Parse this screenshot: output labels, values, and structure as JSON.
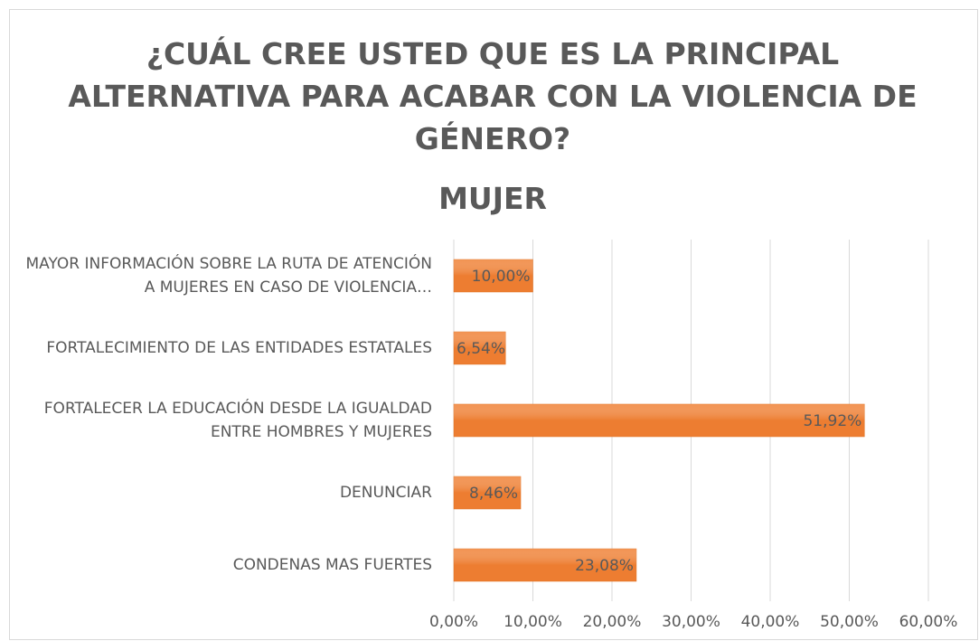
{
  "chart_data": {
    "type": "barh",
    "title": "¿CUÁL CREE USTED QUE ES LA PRINCIPAL ALTERNATIVA PARA ACABAR CON LA VIOLENCIA DE GÉNERO?",
    "subtitle": "MUJER",
    "categories": [
      "MAYOR INFORMACIÓN SOBRE LA RUTA DE ATENCIÓN A MUJERES EN CASO DE VIOLENCIA…",
      "FORTALECIMIENTO DE LAS ENTIDADES ESTATALES",
      "FORTALECER LA EDUCACIÓN DESDE LA IGUALDAD ENTRE HOMBRES Y MUJERES",
      "DENUNCIAR",
      "CONDENAS MAS FUERTES"
    ],
    "values": [
      10,
      6.54,
      51.92,
      8.46,
      23.08
    ],
    "value_labels": [
      "10,00%",
      "6,54%",
      "51,92%",
      "8,46%",
      "23,08%"
    ],
    "color": "#ed7d31",
    "xlim": [
      0,
      60
    ],
    "xticks": [
      {
        "value": 0,
        "label": "0,00%"
      },
      {
        "value": 10,
        "label": "10,00%"
      },
      {
        "value": 20,
        "label": "20,00%"
      },
      {
        "value": 30,
        "label": "30,00%"
      },
      {
        "value": 40,
        "label": "40,00%"
      },
      {
        "value": 50,
        "label": "50,00%"
      },
      {
        "value": 60,
        "label": "60,00%"
      }
    ],
    "grid": true
  }
}
